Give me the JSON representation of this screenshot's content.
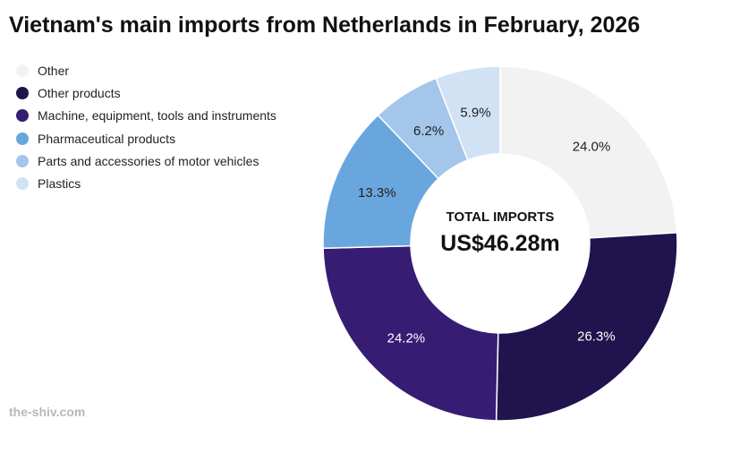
{
  "title": "Vietnam's main imports from Netherlands in February, 2026",
  "watermark": "the-shiv.com",
  "center": {
    "label": "TOTAL IMPORTS",
    "value": "US$46.28m"
  },
  "chart_data": {
    "type": "pie",
    "style": "donut",
    "title": "Vietnam's main imports from Netherlands in February, 2026",
    "legend_position": "top-left",
    "total_label": "TOTAL IMPORTS",
    "total_value": "US$46.28m",
    "slices": [
      {
        "name": "Other",
        "value": 24.0,
        "label": "24.0%",
        "color": "#f2f2f2",
        "label_color": "#222222"
      },
      {
        "name": "Other products",
        "value": 26.3,
        "label": "26.3%",
        "color": "#21134d",
        "label_color": "#ffffff"
      },
      {
        "name": "Machine, equipment, tools and instruments",
        "value": 24.2,
        "label": "24.2%",
        "color": "#371c74",
        "label_color": "#ffffff"
      },
      {
        "name": "Pharmaceutical products",
        "value": 13.3,
        "label": "13.3%",
        "color": "#6aa6de",
        "label_color": "#222222"
      },
      {
        "name": "Parts and accessories of motor vehicles",
        "value": 6.2,
        "label": "6.2%",
        "color": "#a3c6ea",
        "label_color": "#222222"
      },
      {
        "name": "Plastics",
        "value": 5.9,
        "label": "5.9%",
        "color": "#d1e2f5",
        "label_color": "#222222"
      }
    ]
  }
}
